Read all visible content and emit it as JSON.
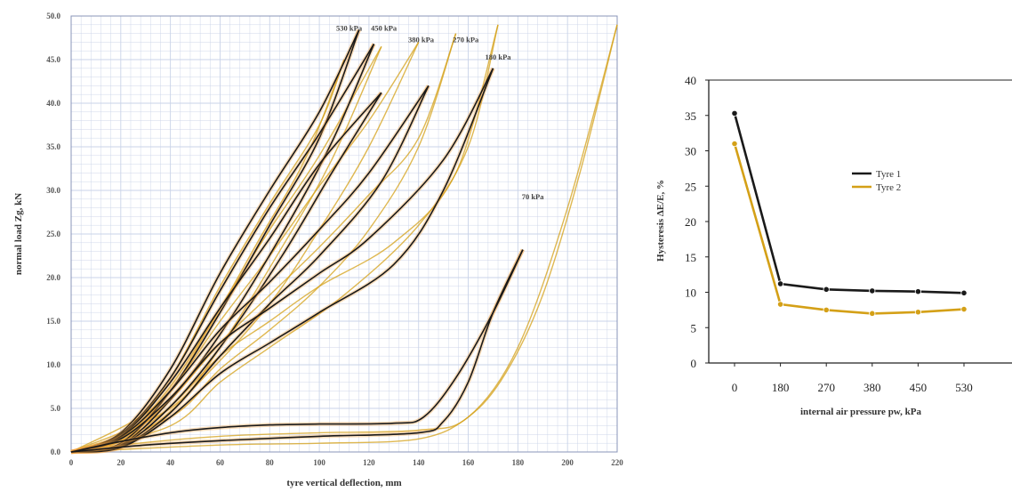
{
  "chart_data": [
    {
      "type": "line",
      "title": "",
      "xlabel": "tyre vertical deflection, mm",
      "ylabel": "normal load Zg, kN",
      "xlim": [
        0,
        220
      ],
      "ylim": [
        0,
        500
      ],
      "xticks": [
        0,
        20,
        40,
        60,
        80,
        100,
        120,
        140,
        160,
        180,
        200,
        220
      ],
      "yticks": [
        0,
        50,
        100,
        150,
        200,
        250,
        300,
        350,
        400,
        450,
        500
      ],
      "ytick_labels": [
        "0.0",
        "5.0",
        "10.0",
        "15.0",
        "20.0",
        "25.0",
        "30.0",
        "35.0",
        "40.0",
        "45.0",
        "50.0"
      ],
      "grid": true,
      "colors": {
        "tyre1": "#1a1a1a",
        "tyre2": "#d4a017",
        "grid": "#c9d3e8"
      },
      "annotations": [
        {
          "text": "530 kPa",
          "x": 112,
          "y": 483
        },
        {
          "text": "450 kPa",
          "x": 126,
          "y": 483
        },
        {
          "text": "380 kPa",
          "x": 141,
          "y": 470
        },
        {
          "text": "270 kPa",
          "x": 159,
          "y": 470
        },
        {
          "text": "180 kPa",
          "x": 172,
          "y": 450
        },
        {
          "text": "70 kPa",
          "x": 186,
          "y": 290
        }
      ],
      "series": [
        {
          "pressure": "530 kPa",
          "tyre": "Tyre 1",
          "loading": [
            [
              0,
              0
            ],
            [
              20,
              22
            ],
            [
              40,
              95
            ],
            [
              60,
              205
            ],
            [
              80,
              300
            ],
            [
              100,
              390
            ],
            [
              116,
              484
            ]
          ],
          "unloading": [
            [
              116,
              484
            ],
            [
              100,
              360
            ],
            [
              80,
              260
            ],
            [
              60,
              160
            ],
            [
              40,
              70
            ],
            [
              20,
              10
            ],
            [
              0,
              0
            ]
          ]
        },
        {
          "pressure": "450 kPa",
          "tyre": "Tyre 1",
          "loading": [
            [
              0,
              0
            ],
            [
              20,
              20
            ],
            [
              40,
              85
            ],
            [
              60,
              185
            ],
            [
              80,
              280
            ],
            [
              100,
              365
            ],
            [
              122,
              468
            ]
          ],
          "unloading": [
            [
              122,
              468
            ],
            [
              105,
              355
            ],
            [
              85,
              250
            ],
            [
              60,
              135
            ],
            [
              40,
              60
            ],
            [
              20,
              8
            ],
            [
              0,
              0
            ]
          ]
        },
        {
          "pressure": "380 kPa",
          "tyre": "Tyre 1",
          "loading": [
            [
              0,
              0
            ],
            [
              20,
              18
            ],
            [
              40,
              80
            ],
            [
              60,
              165
            ],
            [
              80,
              245
            ],
            [
              100,
              330
            ],
            [
              125,
              412
            ]
          ],
          "unloading": [
            [
              125,
              412
            ],
            [
              105,
              320
            ],
            [
              85,
              225
            ],
            [
              60,
              120
            ],
            [
              40,
              52
            ],
            [
              20,
              7
            ],
            [
              0,
              0
            ]
          ]
        },
        {
          "pressure": "270 kPa",
          "tyre": "Tyre 1",
          "loading": [
            [
              0,
              0
            ],
            [
              20,
              17
            ],
            [
              40,
              70
            ],
            [
              60,
              140
            ],
            [
              80,
              195
            ],
            [
              100,
              255
            ],
            [
              120,
              320
            ],
            [
              144,
              420
            ]
          ],
          "unloading": [
            [
              144,
              420
            ],
            [
              125,
              310
            ],
            [
              100,
              225
            ],
            [
              80,
              170
            ],
            [
              60,
              110
            ],
            [
              40,
              45
            ],
            [
              20,
              6
            ],
            [
              0,
              0
            ]
          ]
        },
        {
          "pressure": "180 kPa",
          "tyre": "Tyre 1",
          "loading": [
            [
              0,
              0
            ],
            [
              20,
              15
            ],
            [
              40,
              62
            ],
            [
              60,
              125
            ],
            [
              80,
              165
            ],
            [
              100,
              205
            ],
            [
              120,
              245
            ],
            [
              150,
              335
            ],
            [
              170,
              440
            ]
          ],
          "unloading": [
            [
              170,
              440
            ],
            [
              150,
              300
            ],
            [
              130,
              215
            ],
            [
              100,
              160
            ],
            [
              80,
              125
            ],
            [
              60,
              90
            ],
            [
              40,
              40
            ],
            [
              20,
              5
            ],
            [
              0,
              0
            ]
          ]
        },
        {
          "pressure": "70 kPa",
          "tyre": "Tyre 1",
          "loading": [
            [
              0,
              0
            ],
            [
              20,
              12
            ],
            [
              40,
              22
            ],
            [
              60,
              28
            ],
            [
              80,
              31
            ],
            [
              100,
              32
            ],
            [
              130,
              33
            ],
            [
              142,
              40
            ],
            [
              155,
              85
            ],
            [
              170,
              160
            ],
            [
              182,
              232
            ]
          ],
          "unloading": [
            [
              182,
              232
            ],
            [
              170,
              160
            ],
            [
              160,
              80
            ],
            [
              150,
              35
            ],
            [
              140,
              22
            ],
            [
              100,
              18
            ],
            [
              60,
              13
            ],
            [
              30,
              8
            ],
            [
              0,
              0
            ]
          ]
        },
        {
          "pressure": "530 kPa",
          "tyre": "Tyre 2",
          "loading": [
            [
              0,
              0
            ],
            [
              20,
              18
            ],
            [
              40,
              85
            ],
            [
              60,
              190
            ],
            [
              80,
              285
            ],
            [
              100,
              375
            ],
            [
              110,
              450
            ]
          ],
          "unloading": [
            [
              110,
              450
            ],
            [
              95,
              340
            ],
            [
              75,
              240
            ],
            [
              55,
              140
            ],
            [
              35,
              55
            ],
            [
              0,
              0
            ]
          ]
        },
        {
          "pressure": "450 kPa",
          "tyre": "Tyre 2",
          "loading": [
            [
              0,
              0
            ],
            [
              20,
              16
            ],
            [
              40,
              75
            ],
            [
              60,
              165
            ],
            [
              80,
              255
            ],
            [
              100,
              340
            ],
            [
              125,
              465
            ]
          ],
          "unloading": [
            [
              125,
              465
            ],
            [
              105,
              335
            ],
            [
              85,
              235
            ],
            [
              60,
              120
            ],
            [
              40,
              50
            ],
            [
              0,
              0
            ]
          ]
        },
        {
          "pressure": "380 kPa",
          "tyre": "Tyre 2",
          "loading": [
            [
              0,
              0
            ],
            [
              20,
              15
            ],
            [
              40,
              70
            ],
            [
              60,
              150
            ],
            [
              80,
              225
            ],
            [
              100,
              305
            ],
            [
              120,
              380
            ],
            [
              140,
              470
            ]
          ],
          "unloading": [
            [
              140,
              470
            ],
            [
              120,
              350
            ],
            [
              100,
              255
            ],
            [
              80,
              170
            ],
            [
              55,
              90
            ],
            [
              30,
              25
            ],
            [
              0,
              0
            ]
          ]
        },
        {
          "pressure": "270 kPa",
          "tyre": "Tyre 2",
          "loading": [
            [
              0,
              0
            ],
            [
              20,
              13
            ],
            [
              40,
              60
            ],
            [
              60,
              125
            ],
            [
              80,
              180
            ],
            [
              100,
              235
            ],
            [
              120,
              295
            ],
            [
              140,
              360
            ],
            [
              155,
              480
            ]
          ],
          "unloading": [
            [
              155,
              480
            ],
            [
              140,
              350
            ],
            [
              120,
              255
            ],
            [
              100,
              190
            ],
            [
              80,
              140
            ],
            [
              60,
              95
            ],
            [
              40,
              40
            ],
            [
              0,
              0
            ]
          ]
        },
        {
          "pressure": "180 kPa",
          "tyre": "Tyre 2",
          "loading": [
            [
              0,
              0
            ],
            [
              20,
              12
            ],
            [
              40,
              52
            ],
            [
              60,
              110
            ],
            [
              80,
              150
            ],
            [
              100,
              190
            ],
            [
              130,
              240
            ],
            [
              155,
              320
            ],
            [
              172,
              490
            ]
          ],
          "unloading": [
            [
              172,
              490
            ],
            [
              160,
              350
            ],
            [
              140,
              260
            ],
            [
              110,
              180
            ],
            [
              80,
              120
            ],
            [
              60,
              80
            ],
            [
              40,
              30
            ],
            [
              0,
              0
            ]
          ]
        },
        {
          "pressure": "70 kPa",
          "tyre": "Tyre 2",
          "loading": [
            [
              0,
              0
            ],
            [
              20,
              8
            ],
            [
              60,
              18
            ],
            [
              100,
              22
            ],
            [
              140,
              25
            ],
            [
              160,
              40
            ],
            [
              180,
              120
            ],
            [
              200,
              280
            ],
            [
              220,
              490
            ]
          ],
          "unloading": [
            [
              220,
              490
            ],
            [
              205,
              320
            ],
            [
              190,
              180
            ],
            [
              175,
              90
            ],
            [
              160,
              40
            ],
            [
              140,
              15
            ],
            [
              100,
              10
            ],
            [
              60,
              8
            ],
            [
              0,
              0
            ]
          ]
        }
      ]
    },
    {
      "type": "line",
      "title": "",
      "xlabel": "internal air pressure pw, kPa",
      "ylabel": "Hysteresis ΔE/E, %",
      "categories": [
        "0",
        "180",
        "270",
        "380",
        "450",
        "530"
      ],
      "ylim": [
        0,
        40
      ],
      "yticks": [
        0,
        5,
        10,
        15,
        20,
        25,
        30,
        35,
        40
      ],
      "grid": false,
      "legend": "center-right",
      "series": [
        {
          "name": "Tyre 1",
          "color": "#1a1a1a",
          "values": [
            35.3,
            11.2,
            10.4,
            10.2,
            10.1,
            9.9
          ]
        },
        {
          "name": "Tyre 2",
          "color": "#d4a017",
          "values": [
            31.0,
            8.3,
            7.5,
            7.0,
            7.2,
            7.6
          ]
        }
      ]
    }
  ]
}
